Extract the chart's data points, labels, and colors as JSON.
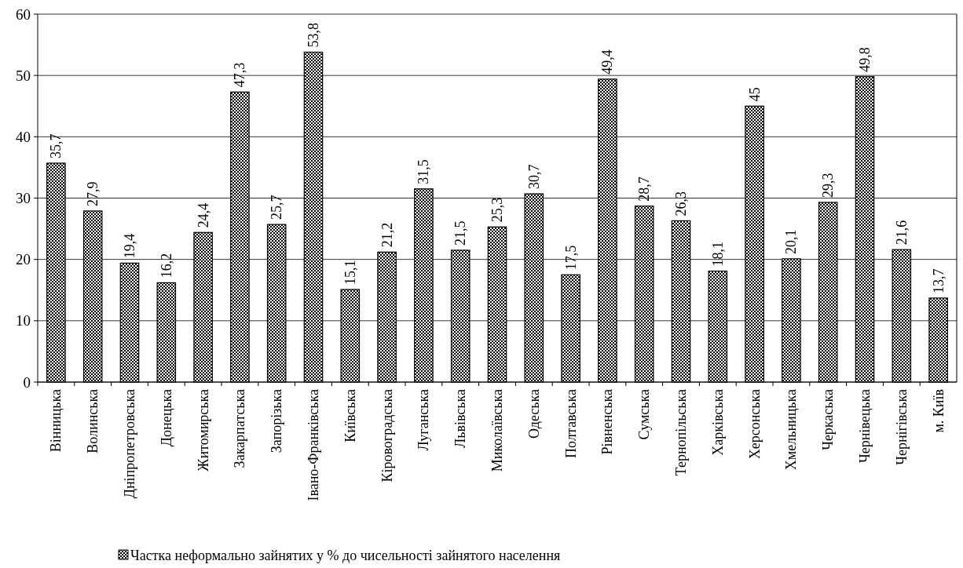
{
  "chart_data": {
    "type": "bar",
    "categories": [
      "Вінницька",
      "Волинська",
      "Дніпропетровська",
      "Донецька",
      "Житомирська",
      "Закарпатська",
      "Запорізька",
      "Івано-Франківська",
      "Київська",
      "Кіровоградська",
      "Луганська",
      "Львівська",
      "Миколаївська",
      "Одеська",
      "Полтавська",
      "Рівненська",
      "Сумська",
      "Тернопільська",
      "Харківська",
      "Херсонська",
      "Хмельницька",
      "Черкаська",
      "Чернівецька",
      "Чернігівська",
      "м. Київ"
    ],
    "series": [
      {
        "name": "Частка неформально зайнятих у % до чисельності зайнятого населення",
        "color": "#000000",
        "values": [
          35.7,
          27.9,
          19.4,
          16.2,
          24.4,
          47.3,
          25.7,
          53.8,
          15.1,
          21.2,
          31.5,
          21.5,
          25.3,
          30.7,
          17.5,
          49.4,
          28.7,
          26.3,
          18.1,
          45,
          20.1,
          29.3,
          49.8,
          21.6,
          13.7
        ],
        "value_labels": [
          "35,7",
          "27,9",
          "19,4",
          "16,2",
          "24,4",
          "47,3",
          "25,7",
          "53,8",
          "15,1",
          "21,2",
          "31,5",
          "21,5",
          "25,3",
          "30,7",
          "17,5",
          "49,4",
          "28,7",
          "26,3",
          "18,1",
          "45",
          "20,1",
          "29,3",
          "49,8",
          "21,6",
          "13,7"
        ]
      }
    ],
    "ylim": [
      0,
      60
    ],
    "yticks": [
      0,
      10,
      20,
      30,
      40,
      50,
      60
    ],
    "grid": "y",
    "legend": "bottom"
  }
}
